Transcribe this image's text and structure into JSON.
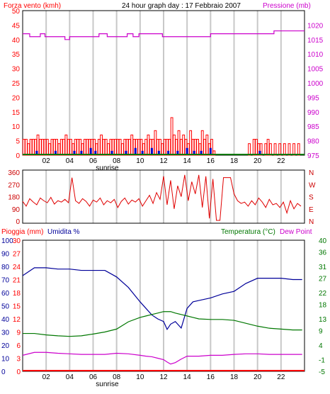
{
  "header": {
    "left_title": "Forza vento (kmh)",
    "center_title": "24 hour graph day : 17 Febbraio 2007",
    "right_title": "Pressione (mb)"
  },
  "x_axis": {
    "tick_labels": [
      "02",
      "04",
      "06",
      "08",
      "10",
      "12",
      "14",
      "16",
      "18",
      "20",
      "22"
    ],
    "tick_hours": [
      2,
      4,
      6,
      8,
      10,
      12,
      14,
      16,
      18,
      20,
      22
    ],
    "range_hours": [
      0,
      24
    ],
    "sunrise_label": "sunrise",
    "sunrise_hour": 7.2
  },
  "colors": {
    "wind": "#ff0000",
    "gust": "#0000c8",
    "pressure": "#cc00cc",
    "direction": "#e00000",
    "humidity": "#000099",
    "temperature": "#007700",
    "dewpoint": "#cc00cc",
    "rain": "#ff0000",
    "gridline": "#c8c8c8"
  },
  "chart_data": [
    {
      "type": "bar",
      "name": "wind",
      "y_left": {
        "label": "Forza vento (kmh)",
        "ticks": [
          0,
          5,
          10,
          15,
          20,
          25,
          30,
          35,
          40,
          45,
          50
        ],
        "range": [
          0,
          50
        ]
      },
      "y_right": {
        "label": "Pressione (mb)",
        "ticks": [
          975,
          980,
          985,
          990,
          995,
          1000,
          1005,
          1010,
          1015,
          1020
        ],
        "range": [
          975,
          1025
        ]
      },
      "wind_bars": [
        {
          "x": 0.1,
          "y": 5.5
        },
        {
          "x": 0.3,
          "y": 5.5
        },
        {
          "x": 0.5,
          "y": 4
        },
        {
          "x": 0.7,
          "y": 5.5
        },
        {
          "x": 0.9,
          "y": 5.5
        },
        {
          "x": 1.1,
          "y": 5.5
        },
        {
          "x": 1.3,
          "y": 7
        },
        {
          "x": 1.5,
          "y": 5.5
        },
        {
          "x": 1.7,
          "y": 5.5
        },
        {
          "x": 1.9,
          "y": 5.5
        },
        {
          "x": 2.1,
          "y": 5.5
        },
        {
          "x": 2.3,
          "y": 4
        },
        {
          "x": 2.5,
          "y": 5.5
        },
        {
          "x": 2.7,
          "y": 5.5
        },
        {
          "x": 2.9,
          "y": 5.5
        },
        {
          "x": 3.1,
          "y": 4
        },
        {
          "x": 3.3,
          "y": 5.5
        },
        {
          "x": 3.5,
          "y": 5.5
        },
        {
          "x": 3.7,
          "y": 7
        },
        {
          "x": 3.9,
          "y": 5.5
        },
        {
          "x": 4.1,
          "y": 5.5
        },
        {
          "x": 4.3,
          "y": 4
        },
        {
          "x": 4.5,
          "y": 5.5
        },
        {
          "x": 4.7,
          "y": 5.5
        },
        {
          "x": 4.9,
          "y": 5.5
        },
        {
          "x": 5.1,
          "y": 4
        },
        {
          "x": 5.3,
          "y": 5.5
        },
        {
          "x": 5.5,
          "y": 5.5
        },
        {
          "x": 5.7,
          "y": 5.5
        },
        {
          "x": 5.9,
          "y": 5.5
        },
        {
          "x": 6.1,
          "y": 5.5
        },
        {
          "x": 6.3,
          "y": 4
        },
        {
          "x": 6.5,
          "y": 5.5
        },
        {
          "x": 6.7,
          "y": 7
        },
        {
          "x": 6.9,
          "y": 5.5
        },
        {
          "x": 7.1,
          "y": 5.5
        },
        {
          "x": 7.3,
          "y": 4
        },
        {
          "x": 7.5,
          "y": 5.5
        },
        {
          "x": 7.7,
          "y": 5.5
        },
        {
          "x": 7.9,
          "y": 5.5
        },
        {
          "x": 8.1,
          "y": 5.5
        },
        {
          "x": 8.3,
          "y": 5.5
        },
        {
          "x": 8.5,
          "y": 4
        },
        {
          "x": 8.7,
          "y": 5.5
        },
        {
          "x": 8.9,
          "y": 5.5
        },
        {
          "x": 9.1,
          "y": 5.5
        },
        {
          "x": 9.3,
          "y": 7
        },
        {
          "x": 9.5,
          "y": 5.5
        },
        {
          "x": 9.7,
          "y": 5.5
        },
        {
          "x": 9.9,
          "y": 5.5
        },
        {
          "x": 10.1,
          "y": 5.5
        },
        {
          "x": 10.3,
          "y": 4
        },
        {
          "x": 10.5,
          "y": 5.5
        },
        {
          "x": 10.7,
          "y": 7
        },
        {
          "x": 10.9,
          "y": 5.5
        },
        {
          "x": 11.1,
          "y": 5.5
        },
        {
          "x": 11.3,
          "y": 8.5
        },
        {
          "x": 11.5,
          "y": 5.5
        },
        {
          "x": 11.7,
          "y": 5.5
        },
        {
          "x": 11.9,
          "y": 4
        },
        {
          "x": 12.1,
          "y": 5.5
        },
        {
          "x": 12.3,
          "y": 5.5
        },
        {
          "x": 12.5,
          "y": 5.5
        },
        {
          "x": 12.7,
          "y": 13
        },
        {
          "x": 12.9,
          "y": 7
        },
        {
          "x": 13.1,
          "y": 5.5
        },
        {
          "x": 13.3,
          "y": 8.5
        },
        {
          "x": 13.5,
          "y": 5.5
        },
        {
          "x": 13.7,
          "y": 7
        },
        {
          "x": 13.9,
          "y": 5.5
        },
        {
          "x": 14.1,
          "y": 4
        },
        {
          "x": 14.3,
          "y": 8.5
        },
        {
          "x": 14.5,
          "y": 5.5
        },
        {
          "x": 14.7,
          "y": 5.5
        },
        {
          "x": 14.9,
          "y": 5.5
        },
        {
          "x": 15.1,
          "y": 4
        },
        {
          "x": 15.3,
          "y": 8.5
        },
        {
          "x": 15.5,
          "y": 5.5
        },
        {
          "x": 15.7,
          "y": 7
        },
        {
          "x": 15.9,
          "y": 4
        },
        {
          "x": 16.1,
          "y": 5.5
        },
        {
          "x": 16.3,
          "y": 1.5
        },
        {
          "x": 19.3,
          "y": 4
        },
        {
          "x": 19.7,
          "y": 5.5
        },
        {
          "x": 19.9,
          "y": 5.5
        },
        {
          "x": 20.1,
          "y": 4
        },
        {
          "x": 20.3,
          "y": 4
        },
        {
          "x": 20.7,
          "y": 4
        },
        {
          "x": 20.9,
          "y": 5.5
        },
        {
          "x": 21.1,
          "y": 4
        },
        {
          "x": 21.5,
          "y": 4
        },
        {
          "x": 21.9,
          "y": 4
        },
        {
          "x": 22.3,
          "y": 4
        },
        {
          "x": 22.7,
          "y": 4
        },
        {
          "x": 23.1,
          "y": 4
        },
        {
          "x": 23.5,
          "y": 4
        }
      ],
      "gust_bars": [
        {
          "x": 1.2,
          "y": 1.5
        },
        {
          "x": 2.8,
          "y": 1.5
        },
        {
          "x": 4.4,
          "y": 1.5
        },
        {
          "x": 5.0,
          "y": 1.5
        },
        {
          "x": 5.8,
          "y": 2.5
        },
        {
          "x": 6.2,
          "y": 1.5
        },
        {
          "x": 7.6,
          "y": 1.5
        },
        {
          "x": 8.8,
          "y": 1.5
        },
        {
          "x": 9.6,
          "y": 2.5
        },
        {
          "x": 10.2,
          "y": 1.5
        },
        {
          "x": 11.0,
          "y": 2.5
        },
        {
          "x": 11.6,
          "y": 1.5
        },
        {
          "x": 12.4,
          "y": 1.5
        },
        {
          "x": 13.2,
          "y": 1.5
        },
        {
          "x": 14.0,
          "y": 2.5
        },
        {
          "x": 14.6,
          "y": 1.5
        },
        {
          "x": 15.2,
          "y": 1.5
        },
        {
          "x": 16.0,
          "y": 2.5
        },
        {
          "x": 20.2,
          "y": 1.5
        }
      ],
      "pressure_line": [
        {
          "x": 0,
          "y": 1017
        },
        {
          "x": 0.6,
          "y": 1017
        },
        {
          "x": 0.6,
          "y": 1016
        },
        {
          "x": 1.5,
          "y": 1016
        },
        {
          "x": 1.5,
          "y": 1017
        },
        {
          "x": 1.9,
          "y": 1017
        },
        {
          "x": 1.9,
          "y": 1016
        },
        {
          "x": 3.6,
          "y": 1016
        },
        {
          "x": 3.6,
          "y": 1015
        },
        {
          "x": 4.0,
          "y": 1015
        },
        {
          "x": 4.0,
          "y": 1016
        },
        {
          "x": 6.5,
          "y": 1016
        },
        {
          "x": 6.5,
          "y": 1017
        },
        {
          "x": 7.2,
          "y": 1017
        },
        {
          "x": 7.2,
          "y": 1016
        },
        {
          "x": 8.9,
          "y": 1016
        },
        {
          "x": 8.9,
          "y": 1017
        },
        {
          "x": 9.4,
          "y": 1017
        },
        {
          "x": 9.4,
          "y": 1016
        },
        {
          "x": 9.9,
          "y": 1016
        },
        {
          "x": 9.9,
          "y": 1017
        },
        {
          "x": 11.9,
          "y": 1017
        },
        {
          "x": 11.9,
          "y": 1016
        },
        {
          "x": 16.0,
          "y": 1016
        },
        {
          "x": 16.0,
          "y": 1017
        },
        {
          "x": 21.4,
          "y": 1017
        },
        {
          "x": 21.4,
          "y": 1018
        },
        {
          "x": 24,
          "y": 1018
        }
      ]
    },
    {
      "type": "line",
      "name": "direction",
      "y_left": {
        "ticks": [
          0,
          90,
          180,
          270,
          360
        ],
        "range": [
          0,
          360
        ]
      },
      "y_right": {
        "labels": [
          "N",
          "W",
          "S",
          "E",
          "N"
        ]
      },
      "x": [
        0.0,
        0.3,
        0.6,
        0.9,
        1.2,
        1.5,
        1.8,
        2.1,
        2.4,
        2.7,
        3.0,
        3.3,
        3.6,
        3.9,
        4.2,
        4.5,
        4.8,
        5.1,
        5.4,
        5.7,
        6.0,
        6.3,
        6.6,
        6.9,
        7.2,
        7.5,
        7.8,
        8.1,
        8.4,
        8.7,
        9.0,
        9.3,
        9.6,
        9.9,
        10.2,
        10.5,
        10.8,
        11.1,
        11.4,
        11.7,
        12.0,
        12.3,
        12.6,
        12.9,
        13.2,
        13.5,
        13.8,
        14.1,
        14.4,
        14.7,
        15.0,
        15.3,
        15.6,
        15.9,
        16.2,
        16.5,
        16.8,
        17.1,
        17.4,
        17.7,
        18.0,
        18.3,
        18.6,
        18.9,
        19.2,
        19.5,
        19.8,
        20.1,
        20.4,
        20.7,
        21.0,
        21.3,
        21.6,
        21.9,
        22.2,
        22.5,
        22.8,
        23.1,
        23.4,
        23.7
      ],
      "y": [
        145,
        110,
        165,
        140,
        120,
        170,
        150,
        135,
        175,
        125,
        150,
        140,
        160,
        135,
        320,
        150,
        130,
        165,
        145,
        110,
        155,
        140,
        170,
        120,
        150,
        135,
        160,
        100,
        145,
        170,
        125,
        155,
        140,
        165,
        110,
        150,
        190,
        130,
        210,
        160,
        330,
        120,
        300,
        90,
        260,
        180,
        340,
        150,
        290,
        200,
        340,
        100,
        330,
        20,
        310,
        5,
        5,
        320,
        320,
        320,
        200,
        150,
        130,
        140,
        110,
        150,
        120,
        170,
        140,
        100,
        160,
        120,
        130,
        100,
        140,
        60,
        150,
        90,
        130,
        110
      ]
    },
    {
      "type": "line",
      "name": "humidity-temperature",
      "y_left_rain": {
        "label": "Pioggia (mm)",
        "ticks": [
          0,
          3,
          6,
          9,
          12,
          15,
          18,
          21,
          24,
          27,
          30
        ],
        "range": [
          0,
          30
        ]
      },
      "y_left_humidity": {
        "label": "Umidita %",
        "ticks": [
          0,
          10,
          20,
          30,
          40,
          50,
          60,
          70,
          80,
          90,
          100
        ],
        "range": [
          0,
          100
        ]
      },
      "y_right": {
        "label": "Temperatura (°C)",
        "ticks": [
          -5,
          -1,
          4,
          9,
          13,
          18,
          22,
          27,
          31,
          36,
          40
        ],
        "range": [
          -5,
          40
        ]
      },
      "y_right_secondary_label": "Dew Point",
      "x": [
        0,
        1,
        2,
        3,
        4,
        5,
        6,
        7,
        8,
        9,
        10,
        10.5,
        11,
        11.5,
        12,
        12.3,
        12.6,
        13,
        13.5,
        14,
        14.5,
        15,
        16,
        17,
        18,
        19,
        20,
        21,
        22,
        23,
        23.8
      ],
      "humidity": [
        73,
        79,
        79,
        78,
        78,
        77,
        77,
        77,
        72,
        64,
        53,
        48,
        43,
        40,
        38,
        32,
        36,
        38,
        33,
        48,
        53,
        54,
        56,
        59,
        61,
        67,
        71,
        71,
        71,
        70,
        70
      ],
      "temperature": [
        8.0,
        8.0,
        7.5,
        7.2,
        7.0,
        7.2,
        7.8,
        8.5,
        9.5,
        12.0,
        13.5,
        14.0,
        14.5,
        15.0,
        15.5,
        15.5,
        15.5,
        15.0,
        14.5,
        14.0,
        13.5,
        13.0,
        12.8,
        12.8,
        12.5,
        11.5,
        10.5,
        9.8,
        9.5,
        9.2,
        9.2
      ],
      "dewpoint": [
        0.5,
        1.5,
        1.5,
        1.2,
        1.0,
        0.8,
        0.8,
        0.8,
        1.2,
        1.0,
        0.5,
        0.2,
        0.0,
        -0.5,
        -1.0,
        -1.8,
        -2.5,
        -2.0,
        -0.8,
        0.2,
        0.2,
        0.2,
        0.5,
        0.5,
        0.8,
        1.0,
        1.0,
        0.8,
        0.8,
        0.8,
        0.8
      ],
      "rain": [
        0,
        0
      ]
    }
  ]
}
